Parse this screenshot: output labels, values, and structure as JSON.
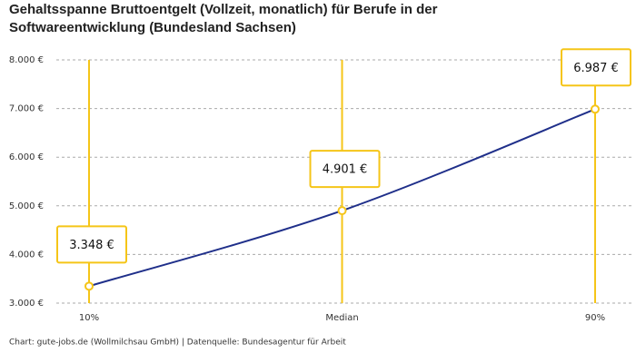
{
  "chart_data": {
    "type": "line",
    "title": "Gehaltsspanne Bruttoentgelt (Vollzeit, monatlich) für Berufe in der Softwareentwicklung (Bundesland Sachsen)",
    "categories": [
      "10%",
      "Median",
      "90%"
    ],
    "values": [
      3348,
      4901,
      6987
    ],
    "value_labels": [
      "3.348 €",
      "4.901 €",
      "6.987 €"
    ],
    "color": "#1f2f8a",
    "marker_color": "#f5c518",
    "ylim": [
      3000,
      8000
    ],
    "yticks": [
      {
        "value": 3000,
        "label": "3.000 €"
      },
      {
        "value": 4000,
        "label": "4.000 €"
      },
      {
        "value": 5000,
        "label": "5.000 €"
      },
      {
        "value": 6000,
        "label": "6.000 €"
      },
      {
        "value": 7000,
        "label": "7.000 €"
      },
      {
        "value": 8000,
        "label": "8.000 €"
      }
    ],
    "grid": true,
    "source": "Chart: gute-jobs.de (Wollmilchsau GmbH) | Datenquelle: Bundesagentur für Arbeit"
  }
}
